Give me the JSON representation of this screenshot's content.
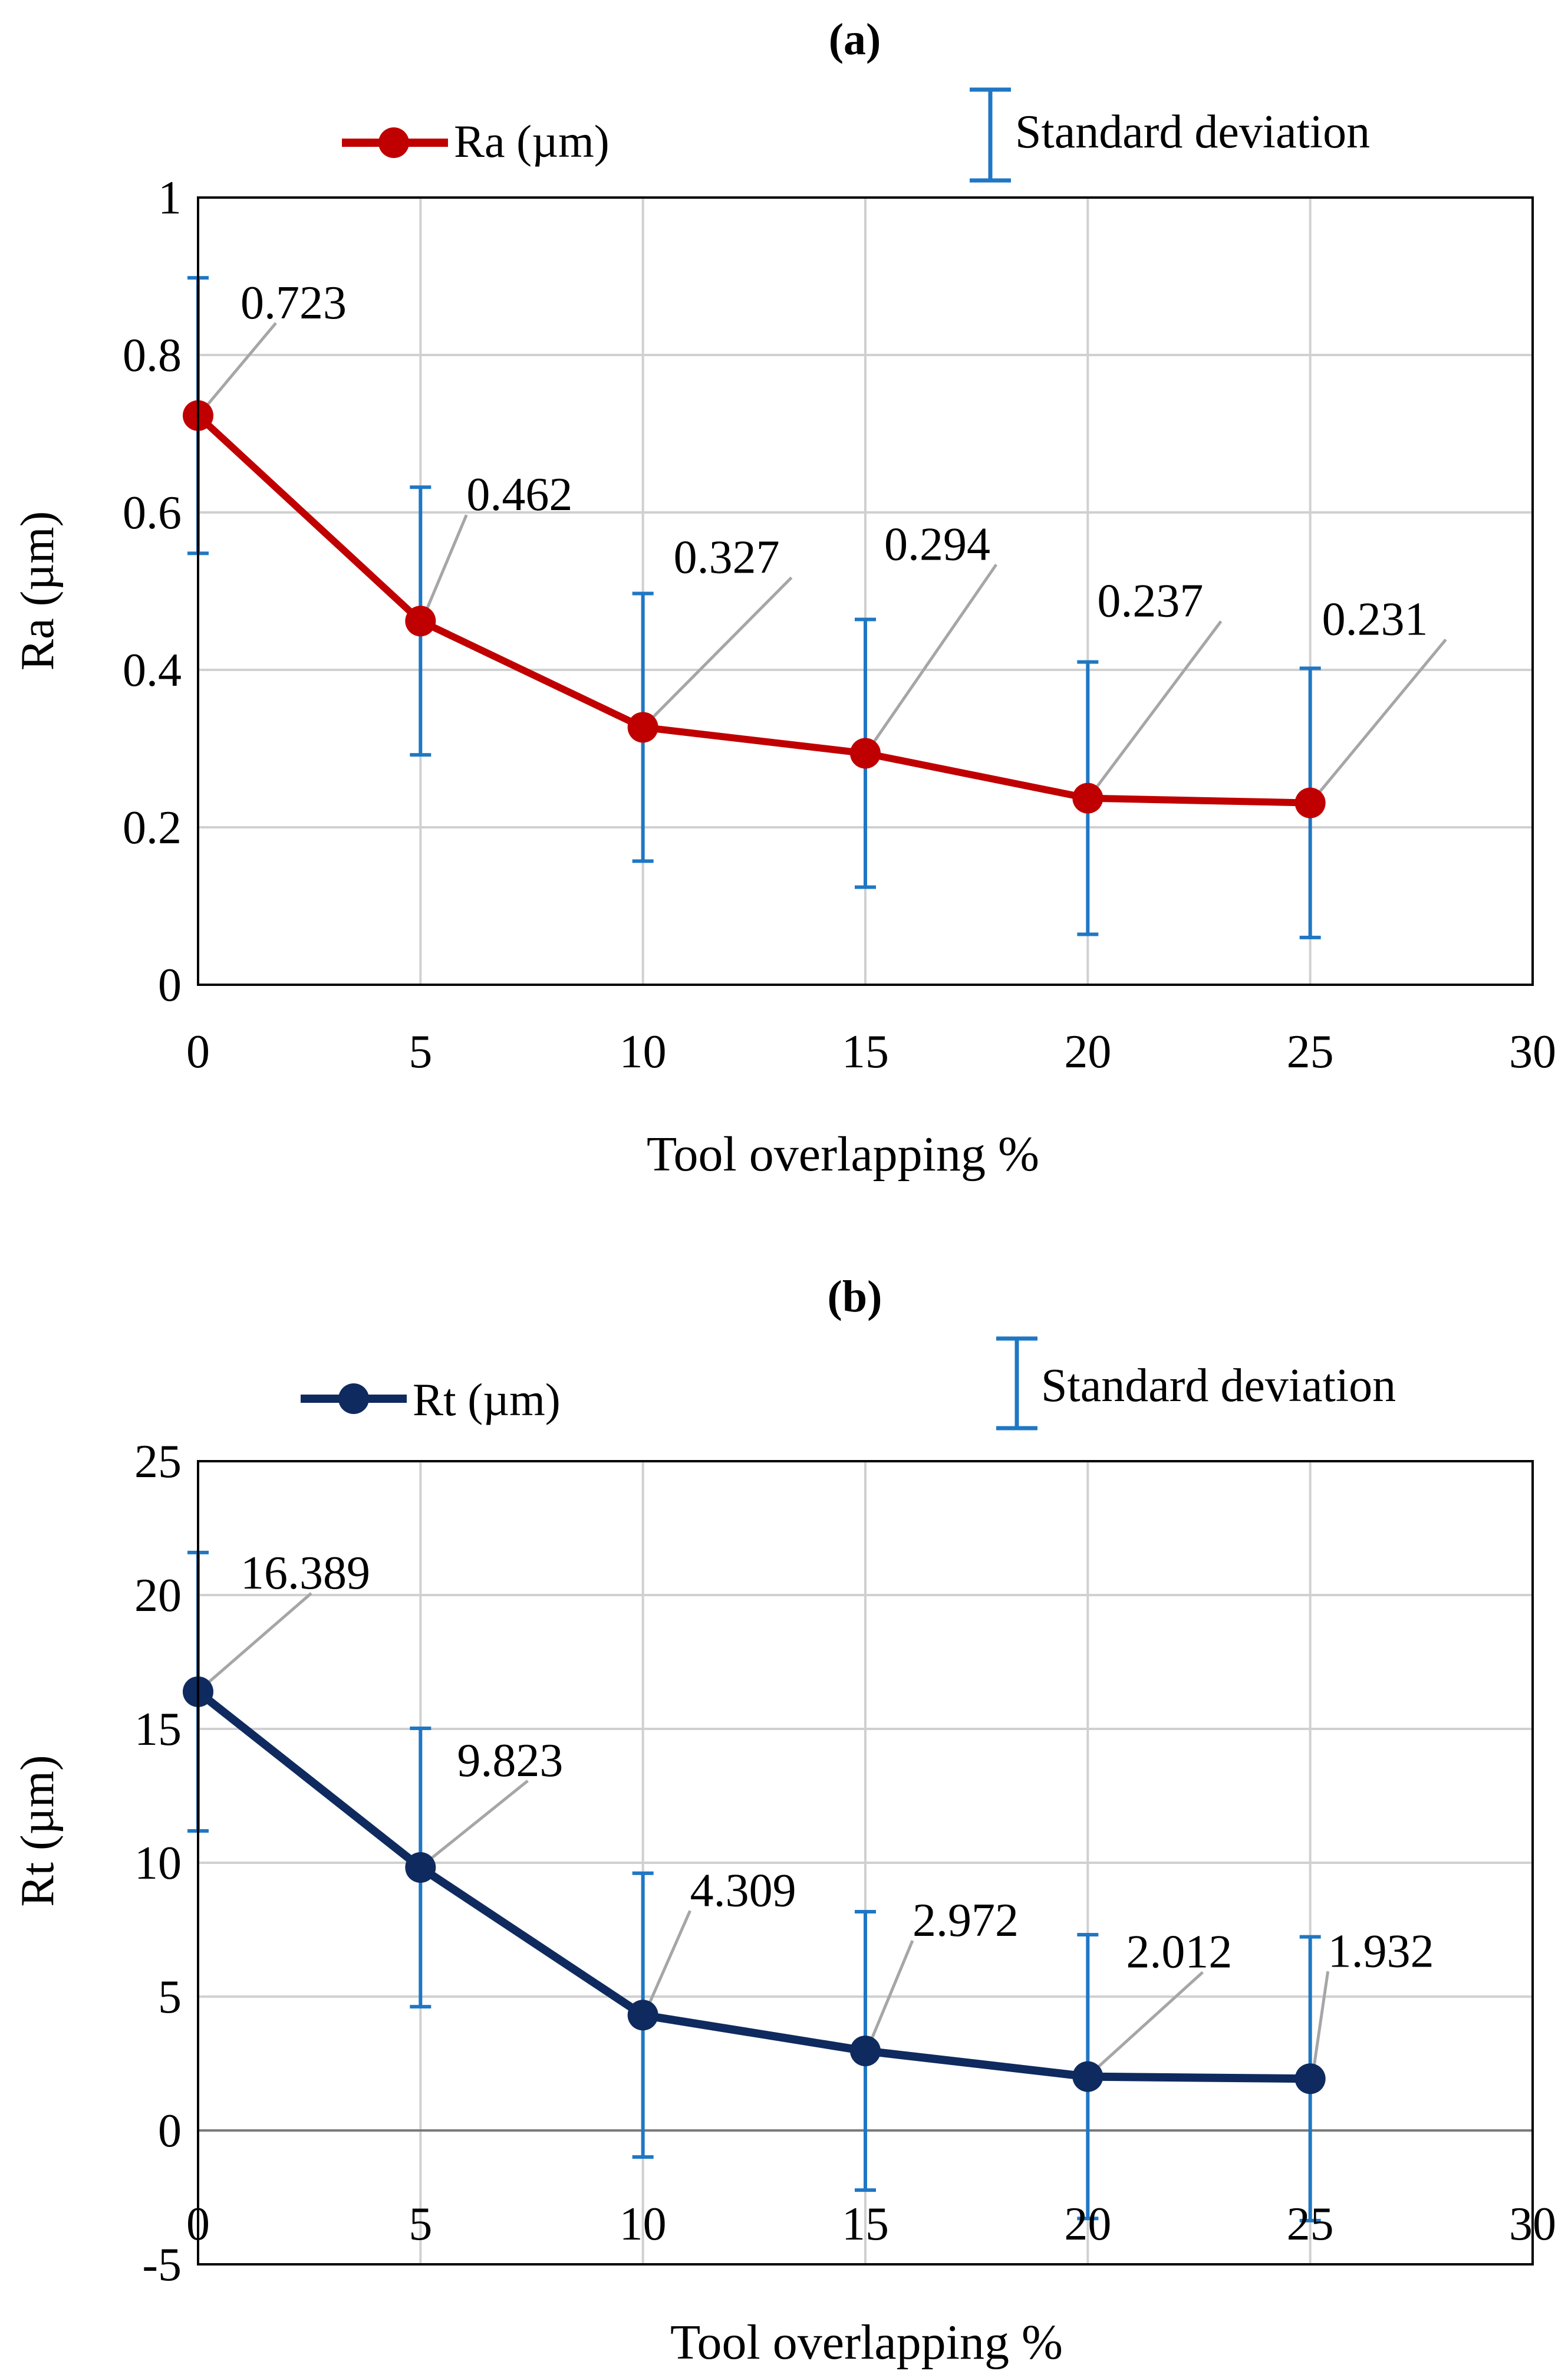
{
  "colors": {
    "ra_series": "#c00000",
    "rt_series": "#0f2a5e",
    "error_bar": "#1f77c4",
    "grid": "#d0d0d0",
    "leader": "#a6a6a6",
    "axis": "#000000"
  },
  "chart_data": [
    {
      "panel_label": "(a)",
      "type": "line",
      "legend": {
        "series_label": "Ra (µm)",
        "std_label": "Standard deviation"
      },
      "ylabel": "Ra (µm)",
      "xlabel": "Tool overlapping  %",
      "xlim": [
        0,
        30
      ],
      "ylim": [
        0,
        1
      ],
      "x_ticks": [
        0,
        5,
        10,
        15,
        20,
        25,
        30
      ],
      "x_tick_labels": [
        "0",
        "5",
        "10",
        "15",
        "20",
        "25",
        "30"
      ],
      "y_ticks": [
        0,
        0.2,
        0.4,
        0.6,
        0.8,
        1
      ],
      "y_tick_labels": [
        "0",
        "0.2",
        "0.4",
        "0.6",
        "0.8",
        "1"
      ],
      "grid": true,
      "series": [
        {
          "name": "Ra (µm)",
          "x": [
            0,
            5,
            10,
            15,
            20,
            25
          ],
          "values": [
            0.723,
            0.462,
            0.327,
            0.294,
            0.237,
            0.231
          ],
          "labels": [
            "0.723",
            "0.462",
            "0.327",
            "0.294",
            "0.237",
            "0.231"
          ],
          "std": [
            0.175,
            0.17,
            0.17,
            0.17,
            0.173,
            0.171
          ]
        }
      ]
    },
    {
      "panel_label": "(b)",
      "type": "line",
      "legend": {
        "series_label": "Rt (µm)",
        "std_label": "Standard deviation"
      },
      "ylabel": "Rt (µm)",
      "xlabel": "Tool overlapping  %",
      "xlim": [
        0,
        30
      ],
      "ylim": [
        -5,
        25
      ],
      "x_ticks": [
        0,
        5,
        10,
        15,
        20,
        25,
        30
      ],
      "x_tick_labels": [
        "0",
        "5",
        "10",
        "15",
        "20",
        "25",
        "30"
      ],
      "y_ticks": [
        -5,
        0,
        5,
        10,
        15,
        20,
        25
      ],
      "y_tick_labels": [
        "-5",
        "0",
        "5",
        "10",
        "15",
        "20",
        "25"
      ],
      "grid": true,
      "series": [
        {
          "name": "Rt (µm)",
          "x": [
            0,
            5,
            10,
            15,
            20,
            25
          ],
          "values": [
            16.389,
            9.823,
            4.309,
            2.972,
            2.012,
            1.932
          ],
          "labels": [
            "16.389",
            "9.823",
            "4.309",
            "2.972",
            "2.012",
            "1.932"
          ],
          "std": [
            5.2,
            5.2,
            5.3,
            5.2,
            5.3,
            5.3
          ]
        }
      ]
    }
  ]
}
